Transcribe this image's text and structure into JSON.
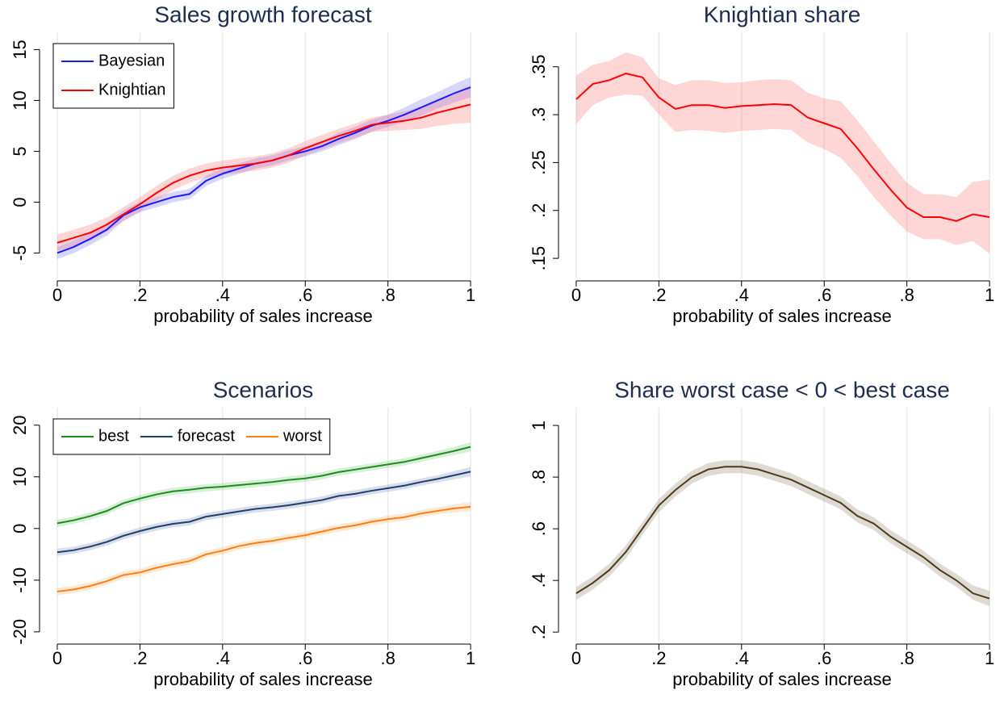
{
  "chart_data": [
    {
      "type": "line",
      "title": "Sales growth forecast",
      "x_label": "probability of sales increase",
      "x": [
        0,
        0.04,
        0.08,
        0.12,
        0.16,
        0.2,
        0.24,
        0.28,
        0.32,
        0.36,
        0.4,
        0.44,
        0.48,
        0.52,
        0.56,
        0.6,
        0.64,
        0.68,
        0.72,
        0.76,
        0.8,
        0.84,
        0.88,
        0.92,
        0.96,
        1
      ],
      "xlim": [
        -0.037,
        1.033
      ],
      "xticks": [
        0,
        {
          "value": 0.2,
          "label": ".2"
        },
        {
          "value": 0.4,
          "label": ".4"
        },
        {
          "value": 0.6,
          "label": ".6"
        },
        {
          "value": 0.8,
          "label": ".8"
        },
        1
      ],
      "ylim": [
        -7.5,
        16.7
      ],
      "yticks": [
        -5,
        0,
        5,
        10,
        15
      ],
      "xgrid": true,
      "legend": "top-left",
      "legend_cols": 1,
      "series": [
        {
          "name": "Bayesian",
          "color": "#1a1aff",
          "band_color": "rgba(90,90,255,0.25)",
          "values": [
            -5.0,
            -4.4,
            -3.6,
            -2.7,
            -1.3,
            -0.5,
            0.0,
            0.5,
            0.8,
            2.1,
            2.8,
            3.3,
            3.8,
            4.1,
            4.6,
            5.0,
            5.5,
            6.2,
            6.8,
            7.5,
            8.0,
            8.6,
            9.3,
            10.0,
            10.7,
            11.3
          ],
          "lower": [
            -5.6,
            -5.0,
            -4.2,
            -3.3,
            -1.8,
            -1.0,
            -0.5,
            0.0,
            0.3,
            1.6,
            2.3,
            2.8,
            3.3,
            3.6,
            4.1,
            4.5,
            5.0,
            5.6,
            6.2,
            6.9,
            7.4,
            7.9,
            8.5,
            9.2,
            9.8,
            10.3
          ],
          "upper": [
            -4.4,
            -3.8,
            -3.0,
            -2.1,
            -0.8,
            0.0,
            0.5,
            1.0,
            1.3,
            2.6,
            3.3,
            3.8,
            4.3,
            4.6,
            5.1,
            5.5,
            6.0,
            6.8,
            7.4,
            8.1,
            8.6,
            9.3,
            10.1,
            10.8,
            11.6,
            12.3
          ]
        },
        {
          "name": "Knightian",
          "color": "#ff0000",
          "band_color": "rgba(255,90,90,0.25)",
          "values": [
            -4.0,
            -3.5,
            -3.0,
            -2.2,
            -1.2,
            -0.2,
            0.9,
            1.9,
            2.6,
            3.1,
            3.4,
            3.6,
            3.8,
            4.1,
            4.6,
            5.3,
            5.9,
            6.5,
            7.0,
            7.6,
            7.8,
            8.0,
            8.3,
            8.8,
            9.2,
            9.6
          ],
          "lower": [
            -4.8,
            -4.3,
            -3.8,
            -2.9,
            -1.9,
            -0.9,
            0.2,
            1.2,
            1.9,
            2.4,
            2.7,
            2.9,
            3.1,
            3.4,
            3.9,
            4.6,
            5.2,
            5.8,
            6.3,
            6.9,
            7.0,
            7.1,
            7.2,
            7.5,
            7.7,
            7.8
          ],
          "upper": [
            -3.2,
            -2.7,
            -2.2,
            -1.5,
            -0.5,
            0.5,
            1.6,
            2.6,
            3.3,
            3.8,
            4.1,
            4.3,
            4.5,
            4.8,
            5.3,
            6.0,
            6.6,
            7.2,
            7.7,
            8.3,
            8.6,
            8.9,
            9.4,
            10.1,
            10.7,
            11.4
          ]
        }
      ]
    },
    {
      "type": "line",
      "title": "Knightian share",
      "x_label": "probability of sales increase",
      "x": [
        0,
        0.04,
        0.08,
        0.12,
        0.16,
        0.2,
        0.24,
        0.28,
        0.32,
        0.36,
        0.4,
        0.44,
        0.48,
        0.52,
        0.56,
        0.6,
        0.64,
        0.68,
        0.72,
        0.76,
        0.8,
        0.84,
        0.88,
        0.92,
        0.96,
        1
      ],
      "xlim": [
        -0.037,
        1.033
      ],
      "xticks": [
        0,
        {
          "value": 0.2,
          "label": ".2"
        },
        {
          "value": 0.4,
          "label": ".4"
        },
        {
          "value": 0.6,
          "label": ".6"
        },
        {
          "value": 0.8,
          "label": ".8"
        },
        1
      ],
      "ylim": [
        0.129,
        0.386
      ],
      "yticks": [
        {
          "value": 0.15,
          "label": ".15"
        },
        {
          "value": 0.2,
          "label": ".2"
        },
        {
          "value": 0.25,
          "label": ".25"
        },
        {
          "value": 0.3,
          "label": ".3"
        },
        {
          "value": 0.35,
          "label": ".35"
        }
      ],
      "xgrid": true,
      "series": [
        {
          "color": "#ff0000",
          "band_color": "rgba(255,90,90,0.25)",
          "values": [
            0.316,
            0.332,
            0.336,
            0.343,
            0.339,
            0.318,
            0.306,
            0.31,
            0.31,
            0.307,
            0.309,
            0.31,
            0.311,
            0.31,
            0.297,
            0.291,
            0.285,
            0.265,
            0.243,
            0.222,
            0.203,
            0.193,
            0.193,
            0.189,
            0.196,
            0.193
          ],
          "lower": [
            0.29,
            0.31,
            0.318,
            0.321,
            0.32,
            0.3,
            0.282,
            0.284,
            0.283,
            0.281,
            0.283,
            0.284,
            0.285,
            0.284,
            0.271,
            0.264,
            0.255,
            0.236,
            0.214,
            0.195,
            0.178,
            0.17,
            0.17,
            0.164,
            0.168,
            0.155
          ],
          "upper": [
            0.341,
            0.352,
            0.356,
            0.365,
            0.36,
            0.338,
            0.331,
            0.336,
            0.336,
            0.333,
            0.334,
            0.336,
            0.337,
            0.336,
            0.323,
            0.317,
            0.314,
            0.294,
            0.272,
            0.25,
            0.229,
            0.217,
            0.217,
            0.214,
            0.23,
            0.232
          ]
        }
      ]
    },
    {
      "type": "line",
      "title": "Scenarios",
      "x_label": "probability of sales increase",
      "x": [
        0,
        0.04,
        0.08,
        0.12,
        0.16,
        0.2,
        0.24,
        0.28,
        0.32,
        0.36,
        0.4,
        0.44,
        0.48,
        0.52,
        0.56,
        0.6,
        0.64,
        0.68,
        0.72,
        0.76,
        0.8,
        0.84,
        0.88,
        0.92,
        0.96,
        1
      ],
      "xlim": [
        -0.037,
        1.033
      ],
      "xticks": [
        0,
        {
          "value": 0.2,
          "label": ".2"
        },
        {
          "value": 0.4,
          "label": ".4"
        },
        {
          "value": 0.6,
          "label": ".6"
        },
        {
          "value": 0.8,
          "label": ".8"
        },
        1
      ],
      "ylim": [
        -21.9,
        23.4
      ],
      "yticks": [
        -20,
        -10,
        0,
        10,
        20
      ],
      "xgrid": true,
      "legend": "top-left",
      "legend_cols": 3,
      "series": [
        {
          "name": "best",
          "color": "#1a8f1a",
          "band_color": "rgba(60,170,60,0.2)",
          "values": [
            1.0,
            1.6,
            2.4,
            3.4,
            4.9,
            5.8,
            6.6,
            7.2,
            7.5,
            7.9,
            8.1,
            8.4,
            8.7,
            9.0,
            9.4,
            9.7,
            10.2,
            10.9,
            11.4,
            11.9,
            12.4,
            12.9,
            13.6,
            14.3,
            15.0,
            15.8
          ],
          "lower": [
            0.3,
            0.9,
            1.7,
            2.7,
            4.2,
            5.1,
            5.9,
            6.5,
            6.8,
            7.2,
            7.4,
            7.7,
            8.0,
            8.3,
            8.7,
            9.0,
            9.5,
            10.2,
            10.7,
            11.2,
            11.7,
            12.2,
            12.9,
            13.6,
            14.2,
            14.9
          ],
          "upper": [
            1.7,
            2.3,
            3.1,
            4.1,
            5.6,
            6.5,
            7.3,
            7.9,
            8.2,
            8.6,
            8.8,
            9.1,
            9.4,
            9.7,
            10.1,
            10.4,
            10.9,
            11.6,
            12.1,
            12.6,
            13.1,
            13.6,
            14.3,
            15.0,
            15.8,
            16.7
          ]
        },
        {
          "name": "forecast",
          "color": "#1f3f6f",
          "band_color": "rgba(60,90,150,0.2)",
          "values": [
            -4.6,
            -4.2,
            -3.5,
            -2.6,
            -1.4,
            -0.5,
            0.3,
            0.9,
            1.3,
            2.3,
            2.8,
            3.3,
            3.8,
            4.1,
            4.5,
            5.0,
            5.5,
            6.3,
            6.7,
            7.3,
            7.8,
            8.3,
            9.0,
            9.6,
            10.3,
            11.0
          ],
          "lower": [
            -5.3,
            -4.9,
            -4.2,
            -3.3,
            -2.1,
            -1.2,
            -0.4,
            0.2,
            0.6,
            1.6,
            2.1,
            2.6,
            3.1,
            3.4,
            3.8,
            4.3,
            4.8,
            5.6,
            6.0,
            6.6,
            7.1,
            7.6,
            8.3,
            8.9,
            9.5,
            10.1
          ],
          "upper": [
            -3.9,
            -3.5,
            -2.8,
            -1.9,
            -0.7,
            0.2,
            1.0,
            1.6,
            2.0,
            3.0,
            3.5,
            4.0,
            4.5,
            4.8,
            5.2,
            5.7,
            6.2,
            7.0,
            7.4,
            8.0,
            8.5,
            9.0,
            9.7,
            10.3,
            11.1,
            11.9
          ]
        },
        {
          "name": "worst",
          "color": "#ff7f0e",
          "band_color": "rgba(255,150,60,0.2)",
          "values": [
            -12.2,
            -11.8,
            -11.1,
            -10.2,
            -9.0,
            -8.5,
            -7.6,
            -6.9,
            -6.3,
            -5.0,
            -4.3,
            -3.4,
            -2.8,
            -2.4,
            -1.8,
            -1.3,
            -0.6,
            0.1,
            0.6,
            1.3,
            1.8,
            2.2,
            2.9,
            3.4,
            3.9,
            4.2
          ],
          "lower": [
            -12.9,
            -12.5,
            -11.8,
            -10.9,
            -9.7,
            -9.2,
            -8.3,
            -7.6,
            -7.0,
            -5.7,
            -5.0,
            -4.1,
            -3.5,
            -3.1,
            -2.5,
            -2.0,
            -1.3,
            -0.6,
            -0.1,
            0.6,
            1.1,
            1.5,
            2.2,
            2.7,
            3.1,
            3.3
          ],
          "upper": [
            -11.5,
            -11.1,
            -10.4,
            -9.5,
            -8.3,
            -7.8,
            -6.9,
            -6.2,
            -5.6,
            -4.3,
            -3.6,
            -2.7,
            -2.1,
            -1.7,
            -1.1,
            -0.6,
            0.1,
            0.8,
            1.3,
            2.0,
            2.5,
            2.9,
            3.6,
            4.1,
            4.7,
            5.1
          ]
        }
      ]
    },
    {
      "type": "line",
      "title": "Share worst case < 0 < best case",
      "x_label": "probability of sales increase",
      "x": [
        0,
        0.04,
        0.08,
        0.12,
        0.16,
        0.2,
        0.24,
        0.28,
        0.32,
        0.36,
        0.4,
        0.44,
        0.48,
        0.52,
        0.56,
        0.6,
        0.64,
        0.68,
        0.72,
        0.76,
        0.8,
        0.84,
        0.88,
        0.92,
        0.96,
        1
      ],
      "xlim": [
        -0.037,
        1.033
      ],
      "xticks": [
        0,
        {
          "value": 0.2,
          "label": ".2"
        },
        {
          "value": 0.4,
          "label": ".4"
        },
        {
          "value": 0.6,
          "label": ".6"
        },
        {
          "value": 0.8,
          "label": ".8"
        },
        1
      ],
      "ylim": [
        0.163,
        1.069
      ],
      "yticks": [
        {
          "value": 0.2,
          "label": ".2"
        },
        {
          "value": 0.4,
          "label": ".4"
        },
        {
          "value": 0.6,
          "label": ".6"
        },
        {
          "value": 0.8,
          "label": ".8"
        },
        1
      ],
      "xgrid": true,
      "series": [
        {
          "color": "#4d3b1a",
          "band_color": "rgba(120,110,80,0.25)",
          "values": [
            0.35,
            0.39,
            0.44,
            0.51,
            0.6,
            0.69,
            0.75,
            0.8,
            0.83,
            0.84,
            0.84,
            0.83,
            0.81,
            0.79,
            0.76,
            0.73,
            0.7,
            0.65,
            0.62,
            0.57,
            0.53,
            0.49,
            0.44,
            0.4,
            0.35,
            0.33
          ],
          "lower": [
            0.325,
            0.365,
            0.415,
            0.485,
            0.575,
            0.665,
            0.725,
            0.775,
            0.805,
            0.815,
            0.815,
            0.805,
            0.785,
            0.765,
            0.735,
            0.705,
            0.675,
            0.625,
            0.595,
            0.545,
            0.505,
            0.465,
            0.415,
            0.375,
            0.325,
            0.3
          ],
          "upper": [
            0.375,
            0.415,
            0.465,
            0.535,
            0.625,
            0.715,
            0.775,
            0.825,
            0.855,
            0.865,
            0.865,
            0.855,
            0.835,
            0.815,
            0.785,
            0.755,
            0.725,
            0.675,
            0.645,
            0.595,
            0.555,
            0.515,
            0.465,
            0.425,
            0.38,
            0.36
          ]
        }
      ]
    }
  ]
}
